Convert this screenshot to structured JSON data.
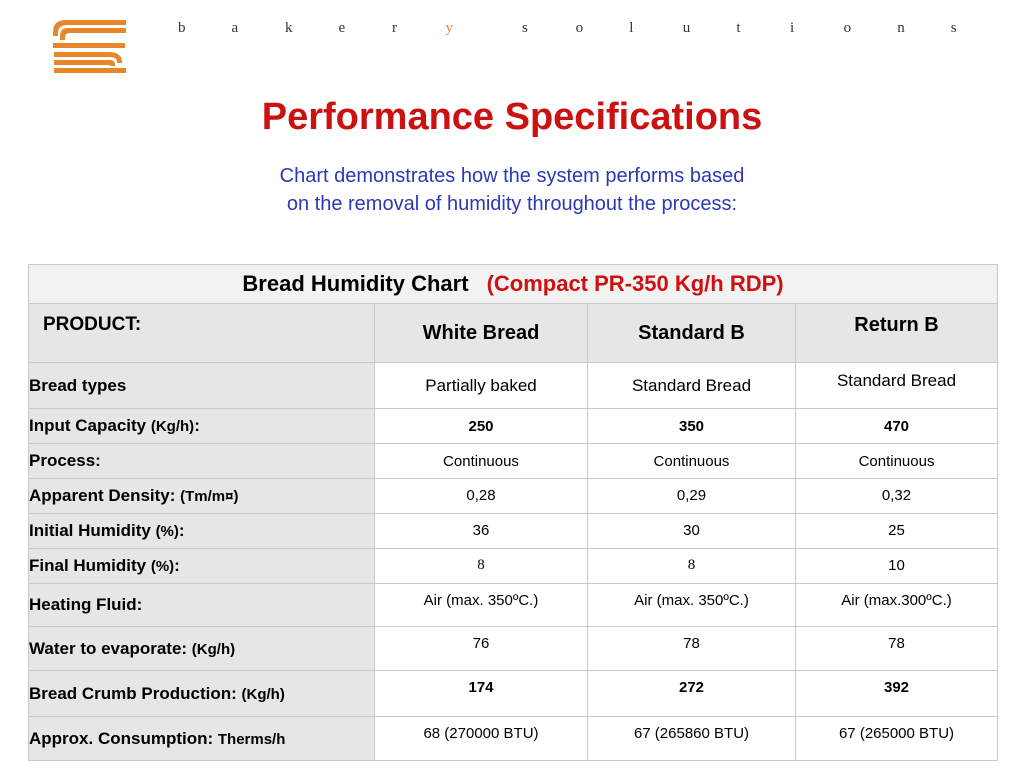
{
  "header": {
    "logo_icon": "stylized-s-stripes-logo",
    "brand_left": "bakery",
    "brand_right": "solutions",
    "accent_color": "#e8862b"
  },
  "title": "Performance Specifications",
  "subtitle_line1": "Chart demonstrates how the system performs based",
  "subtitle_line2": "on the removal of humidity throughout the process:",
  "table": {
    "caption": "Bread Humidity Chart",
    "caption_model": "(Compact PR-350 Kg/h  RDP)",
    "product_header": "PRODUCT:",
    "columns": [
      "White Bread",
      "Standard B",
      "Return B"
    ],
    "rows": [
      {
        "label": "Bread types",
        "unit": "",
        "values": [
          "Partially baked",
          "Standard Bread",
          "Standard Bread"
        ]
      },
      {
        "label": "Input Capacity ",
        "unit": "(Kg/h)",
        "suffix": ":",
        "values": [
          "250",
          "350",
          "470"
        ]
      },
      {
        "label": "Process:",
        "unit": "",
        "values": [
          "Continuous",
          "Continuous",
          "Continuous"
        ]
      },
      {
        "label": "Apparent Density: ",
        "unit": "(Tm/m¤)",
        "values": [
          "0,28",
          "0,29",
          "0,32"
        ]
      },
      {
        "label": "Initial Humidity ",
        "unit": "(%)",
        "suffix": ":",
        "values": [
          "36",
          "30",
          "25"
        ]
      },
      {
        "label": "Final Humidity ",
        "unit": "(%)",
        "suffix": ":",
        "values": [
          "8",
          "8",
          "10"
        ]
      },
      {
        "label": "Heating Fluid:",
        "unit": "",
        "values": [
          "Air  (max. 350ºC.)",
          "Air (max. 350ºC.)",
          "Air (max.300ºC.)"
        ]
      },
      {
        "label": "Water to evaporate: ",
        "unit": "(Kg/h)",
        "values": [
          "76",
          "78",
          "78"
        ]
      },
      {
        "label": "Bread Crumb Production: ",
        "unit": "(Kg/h)",
        "values": [
          "174",
          "272",
          "392"
        ]
      },
      {
        "label": "Approx. Consumption: ",
        "unit": "Therms/h",
        "values": [
          "68 (270000 BTU)",
          "67 (265860 BTU)",
          "67 (265000 BTU)"
        ]
      }
    ]
  }
}
